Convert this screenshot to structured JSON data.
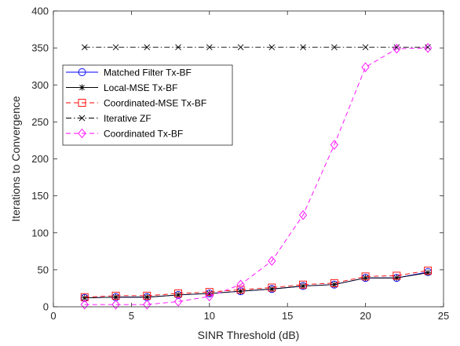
{
  "chart_data": {
    "type": "line",
    "xlabel": "SINR Threshold (dB)",
    "ylabel": "Iterations to Convergence",
    "xlim": [
      0,
      25
    ],
    "ylim": [
      0,
      400
    ],
    "xticks": [
      0,
      5,
      10,
      15,
      20,
      25
    ],
    "yticks": [
      0,
      50,
      100,
      150,
      200,
      250,
      300,
      350,
      400
    ],
    "grid": false,
    "legend_position": "upper-left",
    "x": [
      2,
      4,
      6,
      8,
      10,
      12,
      14,
      16,
      18,
      20,
      22,
      24
    ],
    "series": [
      {
        "name": "Matched Filter Tx-BF",
        "color": "#0000ff",
        "line": "solid",
        "marker": "circle",
        "values": [
          12,
          13,
          13,
          16,
          18,
          21,
          24,
          28,
          30,
          39,
          39,
          47
        ]
      },
      {
        "name": "Local-MSE Tx-BF",
        "color": "#000000",
        "line": "solid",
        "marker": "asterisk",
        "values": [
          12,
          13,
          13,
          16,
          18,
          21,
          24,
          28,
          30,
          39,
          39,
          46
        ]
      },
      {
        "name": "Coordinated-MSE Tx-BF",
        "color": "#ff0000",
        "line": "dashed",
        "marker": "square",
        "values": [
          13,
          15,
          15,
          18,
          20,
          23,
          26,
          30,
          32,
          41,
          42,
          49
        ]
      },
      {
        "name": "Iterative ZF",
        "color": "#000000",
        "line": "dashdot",
        "marker": "x",
        "values": [
          351,
          351,
          351,
          351,
          351,
          351,
          351,
          351,
          351,
          351,
          351,
          351
        ]
      },
      {
        "name": "Coordinated Tx-BF",
        "color": "#ff00ff",
        "line": "dashed",
        "marker": "diamond",
        "values": [
          3,
          3,
          3,
          7,
          14,
          30,
          62,
          124,
          219,
          324,
          349,
          350
        ]
      }
    ]
  }
}
